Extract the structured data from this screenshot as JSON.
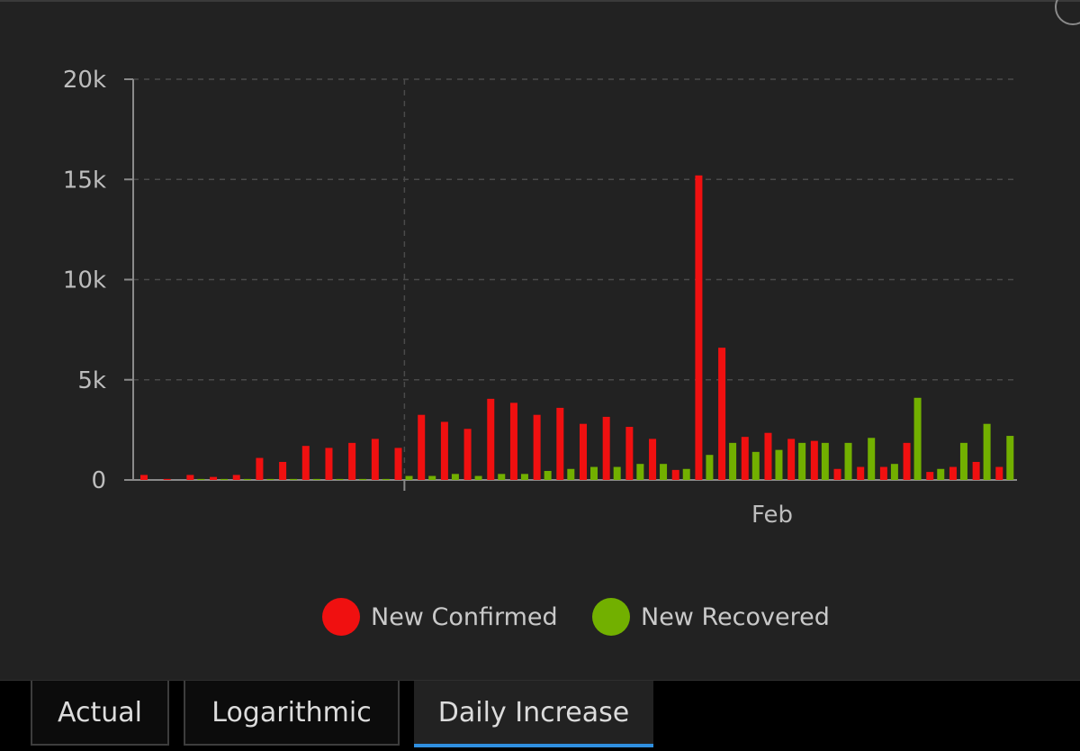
{
  "chart_data": {
    "type": "bar",
    "x_tick_labels": [
      "Feb"
    ],
    "yticks": [
      "0",
      "5k",
      "10k",
      "15k",
      "20k"
    ],
    "ylim": [
      0,
      20000
    ],
    "grid": true,
    "legend_placement": "bottom-center",
    "series": [
      {
        "name": "New Confirmed",
        "color": "#f01010",
        "values": [
          250,
          50,
          250,
          150,
          250,
          1100,
          900,
          1700,
          1600,
          1850,
          2050,
          1600,
          3250,
          2900,
          2550,
          4050,
          3850,
          3250,
          3600,
          2800,
          3150,
          2650,
          2050,
          500,
          15200,
          6600,
          2150,
          2350,
          2050,
          1950,
          550,
          650,
          650,
          1850,
          400,
          650,
          900,
          650
        ]
      },
      {
        "name": "New Recovered",
        "color": "#72b000",
        "values": [
          0,
          0,
          50,
          50,
          50,
          50,
          50,
          50,
          50,
          50,
          50,
          200,
          200,
          300,
          200,
          300,
          300,
          450,
          550,
          650,
          650,
          800,
          800,
          550,
          1250,
          1850,
          1400,
          1500,
          1850,
          1850,
          1850,
          2100,
          800,
          4100,
          550,
          1850,
          2800,
          2200
        ]
      }
    ]
  },
  "legend": {
    "confirmed_label": "New Confirmed",
    "recovered_label": "New Recovered",
    "confirmed_color": "#f01010",
    "recovered_color": "#72b000"
  },
  "tabs": [
    {
      "label": "Actual",
      "active": false
    },
    {
      "label": "Logarithmic",
      "active": false
    },
    {
      "label": "Daily Increase",
      "active": true
    }
  ]
}
